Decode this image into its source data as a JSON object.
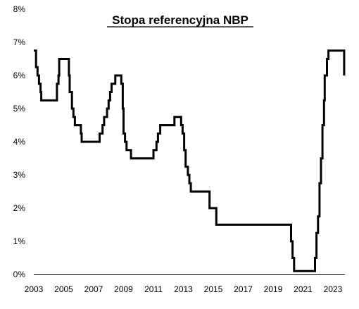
{
  "chart_data": {
    "type": "line",
    "title": "Stopa referencyjna NBP",
    "xlabel": "",
    "ylabel": "",
    "xlim": [
      2003,
      2023.8
    ],
    "ylim": [
      0,
      8
    ],
    "grid": false,
    "legend": "none",
    "series_color": "#000000",
    "x_ticks": [
      "2003",
      "2005",
      "2007",
      "2009",
      "2011",
      "2013",
      "2015",
      "2017",
      "2019",
      "2021",
      "2023"
    ],
    "y_ticks": [
      "0%",
      "1%",
      "2%",
      "3%",
      "4%",
      "5%",
      "6%",
      "7%",
      "8%"
    ],
    "series": [
      {
        "type": "step",
        "points": [
          [
            2003.0,
            6.75
          ],
          [
            2003.15,
            6.25
          ],
          [
            2003.25,
            6.0
          ],
          [
            2003.35,
            5.75
          ],
          [
            2003.45,
            5.5
          ],
          [
            2003.5,
            5.25
          ],
          [
            2004.5,
            5.25
          ],
          [
            2004.55,
            5.75
          ],
          [
            2004.65,
            6.0
          ],
          [
            2004.7,
            6.5
          ],
          [
            2005.3,
            6.5
          ],
          [
            2005.35,
            6.0
          ],
          [
            2005.4,
            5.5
          ],
          [
            2005.55,
            5.0
          ],
          [
            2005.65,
            4.75
          ],
          [
            2005.75,
            4.5
          ],
          [
            2006.15,
            4.25
          ],
          [
            2006.2,
            4.0
          ],
          [
            2007.3,
            4.0
          ],
          [
            2007.4,
            4.25
          ],
          [
            2007.6,
            4.5
          ],
          [
            2007.7,
            4.75
          ],
          [
            2007.9,
            5.0
          ],
          [
            2008.0,
            5.25
          ],
          [
            2008.1,
            5.5
          ],
          [
            2008.2,
            5.75
          ],
          [
            2008.45,
            6.0
          ],
          [
            2008.85,
            5.75
          ],
          [
            2008.95,
            5.0
          ],
          [
            2009.0,
            4.25
          ],
          [
            2009.1,
            4.0
          ],
          [
            2009.2,
            3.75
          ],
          [
            2009.5,
            3.5
          ],
          [
            2011.0,
            3.75
          ],
          [
            2011.2,
            4.0
          ],
          [
            2011.3,
            4.25
          ],
          [
            2011.45,
            4.5
          ],
          [
            2012.4,
            4.75
          ],
          [
            2012.85,
            4.5
          ],
          [
            2012.95,
            4.25
          ],
          [
            2013.05,
            3.75
          ],
          [
            2013.15,
            3.25
          ],
          [
            2013.3,
            3.0
          ],
          [
            2013.4,
            2.75
          ],
          [
            2013.5,
            2.5
          ],
          [
            2014.75,
            2.0
          ],
          [
            2015.2,
            1.5
          ],
          [
            2020.2,
            1.0
          ],
          [
            2020.3,
            0.5
          ],
          [
            2020.4,
            0.1
          ],
          [
            2021.8,
            0.5
          ],
          [
            2021.9,
            1.25
          ],
          [
            2022.0,
            1.75
          ],
          [
            2022.1,
            2.75
          ],
          [
            2022.2,
            3.5
          ],
          [
            2022.3,
            4.5
          ],
          [
            2022.4,
            5.25
          ],
          [
            2022.45,
            6.0
          ],
          [
            2022.6,
            6.5
          ],
          [
            2022.7,
            6.75
          ],
          [
            2023.7,
            6.75
          ],
          [
            2023.75,
            6.0
          ]
        ]
      }
    ]
  }
}
